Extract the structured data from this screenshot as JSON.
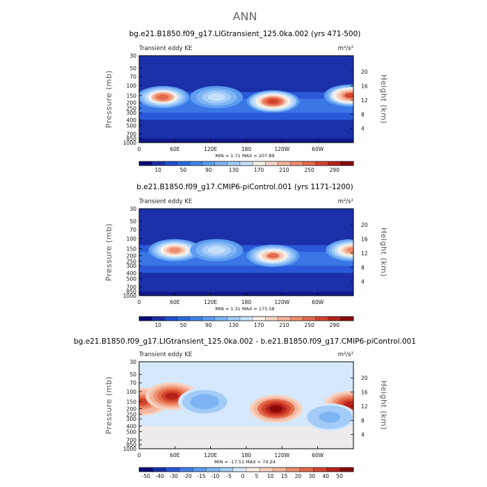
{
  "suptitle": "ANN",
  "colors": {
    "seq": [
      "#0a0a7a",
      "#1b2fa8",
      "#1f4fd0",
      "#2a6ae0",
      "#3f84ea",
      "#5c9cf0",
      "#7fb4f4",
      "#a3cbf8",
      "#c6e0fb",
      "#f8f1ea",
      "#f6d6c6",
      "#f3b69e",
      "#ee8c6e",
      "#e36a4c",
      "#d2452e",
      "#b8221a",
      "#8a0a0a"
    ],
    "div": [
      "#0a0a7a",
      "#1b2fa8",
      "#2a58d8",
      "#3f7ee8",
      "#5c9cf0",
      "#7fb4f4",
      "#a3cbf8",
      "#d6e8fc",
      "#fbeee4",
      "#f6d2bf",
      "#f3b69e",
      "#ee9070",
      "#e56a4a",
      "#d2452e",
      "#b8221a",
      "#8a0a0a"
    ]
  },
  "chart_data": [
    {
      "type": "heatmap",
      "title": "bg.e21.B1850.f09_g17.LIGtransient_125.0ka.002 (yrs 471-500)",
      "left_label": "Transient eddy KE",
      "right_label": "m²/s²",
      "ylabel": "Pressure  (mb)",
      "ylabel_right": "Height  (km)",
      "y_scale": "log",
      "ylim": [
        1000,
        30
      ],
      "xlim": [
        0,
        360
      ],
      "x_ticks": [
        "0",
        "60E",
        "120E",
        "180",
        "120W",
        "60W"
      ],
      "y_ticks": [
        "30",
        "50",
        "70",
        "100",
        "150",
        "200",
        "250",
        "300",
        "400",
        "500",
        "700",
        "850",
        "1000"
      ],
      "y_ticks_right": [
        "20",
        "16",
        "12",
        "8",
        "4"
      ],
      "stats": "MIN =      1.71   MAX = 207.89",
      "min": 1.71,
      "max": 207.89,
      "colorbar_labels": [
        "10",
        "50",
        "90",
        "130",
        "170",
        "210",
        "250",
        "290"
      ],
      "features": [
        {
          "lon": 40,
          "p": 160,
          "value": 175
        },
        {
          "lon": 130,
          "p": 160,
          "value": 80
        },
        {
          "lon": 225,
          "p": 190,
          "value": 205
        },
        {
          "lon": 355,
          "p": 150,
          "value": 190
        }
      ]
    },
    {
      "type": "heatmap",
      "title": "b.e21.B1850.f09_g17.CMIP6-piControl.001 (yrs 1171-1200)",
      "left_label": "Transient eddy KE",
      "right_label": "m²/s²",
      "ylabel": "Pressure  (mb)",
      "ylabel_right": "Height  (km)",
      "y_scale": "log",
      "ylim": [
        1000,
        30
      ],
      "xlim": [
        0,
        360
      ],
      "x_ticks": [
        "0",
        "60E",
        "120E",
        "180",
        "120W",
        "60W"
      ],
      "y_ticks": [
        "30",
        "50",
        "70",
        "100",
        "150",
        "200",
        "250",
        "300",
        "400",
        "500",
        "700",
        "850",
        "1000"
      ],
      "y_ticks_right": [
        "20",
        "16",
        "12",
        "8",
        "4"
      ],
      "stats": "MIN =      1.31   MAX = 175.58",
      "min": 1.31,
      "max": 175.58,
      "colorbar_labels": [
        "10",
        "50",
        "90",
        "130",
        "170",
        "210",
        "250",
        "290"
      ],
      "features": [
        {
          "lon": 60,
          "p": 160,
          "value": 150
        },
        {
          "lon": 130,
          "p": 160,
          "value": 80
        },
        {
          "lon": 225,
          "p": 200,
          "value": 170
        },
        {
          "lon": 358,
          "p": 160,
          "value": 160
        }
      ]
    },
    {
      "type": "heatmap",
      "title": "bg.e21.B1850.f09_g17.LIGtransient_125.0ka.002 - b.e21.B1850.f09_g17.CMIP6-piControl.001",
      "left_label": "Transient eddy KE",
      "right_label": "m²/s²",
      "ylabel": "Pressure  (mb)",
      "ylabel_right": "Height  (km)",
      "y_scale": "log",
      "ylim": [
        1000,
        30
      ],
      "xlim": [
        0,
        360
      ],
      "x_ticks": [
        "0",
        "60E",
        "120E",
        "180",
        "120W",
        "60W"
      ],
      "y_ticks": [
        "30",
        "50",
        "70",
        "100",
        "150",
        "200",
        "250",
        "300",
        "400",
        "500",
        "700",
        "850",
        "1000"
      ],
      "y_ticks_right": [
        "20",
        "16",
        "12",
        "8",
        "4"
      ],
      "stats": "MIN =   -17.51   MAX =   74.24",
      "min": -17.51,
      "max": 74.24,
      "colorbar_labels": [
        "-50",
        "-40",
        "-30",
        "-20",
        "-15",
        "-10",
        "-5",
        "0",
        "5",
        "10",
        "15",
        "20",
        "30",
        "40",
        "50"
      ],
      "features": [
        {
          "lon": 5,
          "p": 150,
          "value": 45
        },
        {
          "lon": 55,
          "p": 120,
          "value": 55
        },
        {
          "lon": 110,
          "p": 150,
          "value": -12
        },
        {
          "lon": 230,
          "p": 200,
          "value": 70
        },
        {
          "lon": 355,
          "p": 170,
          "value": 60
        },
        {
          "lon": 320,
          "p": 280,
          "value": -10
        }
      ]
    }
  ]
}
